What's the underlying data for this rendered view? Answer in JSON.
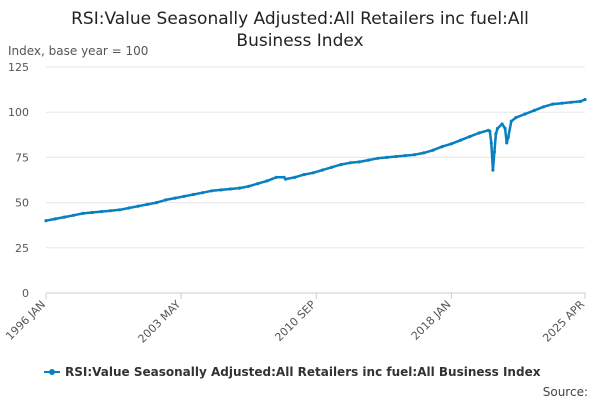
{
  "chart_data": {
    "type": "line",
    "title": "RSI:Value Seasonally Adjusted:All Retailers inc fuel:All Business Index",
    "y_unit_label": "Index, base year = 100",
    "xlabel": "",
    "ylabel": "",
    "ylim": [
      0,
      125
    ],
    "y_ticks": [
      0,
      25,
      50,
      75,
      100,
      125
    ],
    "x_range": [
      "1996 JAN",
      "2025 APR"
    ],
    "x_ticks": [
      "1996 JAN",
      "2003 MAY",
      "2010 SEP",
      "2018 JAN",
      "2025 APR"
    ],
    "grid": true,
    "legend_position": "bottom",
    "series": [
      {
        "name": "RSI:Value Seasonally Adjusted:All Retailers inc fuel:All Business Index",
        "color": "#0a7fc0",
        "points": [
          [
            "1996 JAN",
            40
          ],
          [
            "1996 JUL",
            41
          ],
          [
            "1997 JAN",
            42
          ],
          [
            "1997 JUL",
            43
          ],
          [
            "1998 JAN",
            44
          ],
          [
            "1998 JUL",
            44.5
          ],
          [
            "1999 JAN",
            45
          ],
          [
            "1999 JUL",
            45.5
          ],
          [
            "2000 JAN",
            46
          ],
          [
            "2000 JUL",
            47
          ],
          [
            "2001 JAN",
            48
          ],
          [
            "2001 JUL",
            49
          ],
          [
            "2002 JAN",
            50
          ],
          [
            "2002 JUL",
            51.5
          ],
          [
            "2003 JAN",
            52.5
          ],
          [
            "2003 JUL",
            53.5
          ],
          [
            "2004 JAN",
            54.5
          ],
          [
            "2004 JUL",
            55.5
          ],
          [
            "2005 JAN",
            56.5
          ],
          [
            "2005 JUL",
            57
          ],
          [
            "2006 JAN",
            57.5
          ],
          [
            "2006 JUL",
            58
          ],
          [
            "2007 JAN",
            59
          ],
          [
            "2007 JUL",
            60.5
          ],
          [
            "2008 JAN",
            62
          ],
          [
            "2008 JUL",
            64
          ],
          [
            "2008 DEC",
            64
          ],
          [
            "2009 JAN",
            63
          ],
          [
            "2009 JUL",
            64
          ],
          [
            "2010 JAN",
            65.5
          ],
          [
            "2010 JUL",
            66.5
          ],
          [
            "2011 JAN",
            68
          ],
          [
            "2011 JUL",
            69.5
          ],
          [
            "2012 JAN",
            71
          ],
          [
            "2012 JUL",
            72
          ],
          [
            "2013 JAN",
            72.5
          ],
          [
            "2013 JUL",
            73.5
          ],
          [
            "2014 JAN",
            74.5
          ],
          [
            "2014 JUL",
            75
          ],
          [
            "2015 JAN",
            75.5
          ],
          [
            "2015 JUL",
            76
          ],
          [
            "2016 JAN",
            76.5
          ],
          [
            "2016 JUL",
            77.5
          ],
          [
            "2017 JAN",
            79
          ],
          [
            "2017 JUL",
            81
          ],
          [
            "2018 JAN",
            82.5
          ],
          [
            "2018 JUL",
            84.5
          ],
          [
            "2019 JAN",
            86.5
          ],
          [
            "2019 JUL",
            88.5
          ],
          [
            "2020 JAN",
            90
          ],
          [
            "2020 FEB",
            89.5
          ],
          [
            "2020 MAR",
            83
          ],
          [
            "2020 APR",
            68
          ],
          [
            "2020 MAY",
            78
          ],
          [
            "2020 JUN",
            88
          ],
          [
            "2020 JUL",
            91
          ],
          [
            "2020 OCT",
            93.5
          ],
          [
            "2020 DEC",
            91
          ],
          [
            "2021 JAN",
            83
          ],
          [
            "2021 FEB",
            86
          ],
          [
            "2021 APR",
            95
          ],
          [
            "2021 JUL",
            97
          ],
          [
            "2022 JAN",
            99
          ],
          [
            "2022 JUL",
            101
          ],
          [
            "2023 JAN",
            103
          ],
          [
            "2023 JUL",
            104.5
          ],
          [
            "2024 JAN",
            105
          ],
          [
            "2024 JUL",
            105.5
          ],
          [
            "2025 JAN",
            106
          ],
          [
            "2025 APR",
            107
          ]
        ]
      }
    ]
  },
  "legend": {
    "label": "RSI:Value Seasonally Adjusted:All Retailers inc fuel:All Business Index"
  },
  "footer": {
    "source_label": "Source:"
  }
}
